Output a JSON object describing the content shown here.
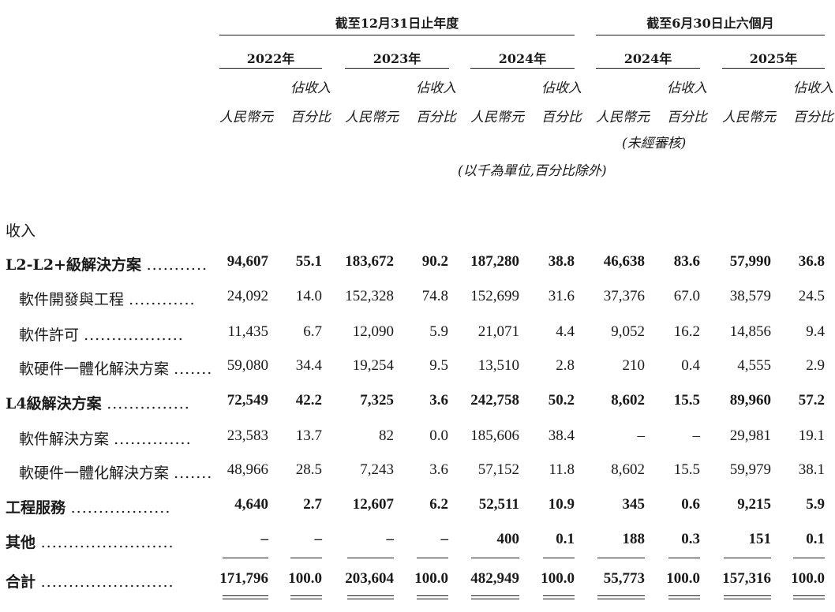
{
  "header": {
    "period_year": "截至12月31日止年度",
    "period_half": "截至6月30日止六個月",
    "years": [
      "2022年",
      "2023年",
      "2024年",
      "2024年",
      "2025年"
    ],
    "col_rmb": "人民幣元",
    "col_pct_line1": "佔收入",
    "col_pct_line2": "百分比",
    "unaudited": "(未經審核)",
    "unit_note": "(以千為單位,百分比除外)"
  },
  "section_title": "收入",
  "rows": [
    {
      "label": "L2-L2+級解決方案",
      "dots": "...........",
      "bold": true,
      "indent": false,
      "values": [
        "94,607",
        "55.1",
        "183,672",
        "90.2",
        "187,280",
        "38.8",
        "46,638",
        "83.6",
        "57,990",
        "36.8"
      ]
    },
    {
      "label": "軟件開發與工程",
      "dots": "............",
      "bold": false,
      "indent": true,
      "values": [
        "24,092",
        "14.0",
        "152,328",
        "74.8",
        "152,699",
        "31.6",
        "37,376",
        "67.0",
        "38,579",
        "24.5"
      ]
    },
    {
      "label": "軟件許可",
      "dots": "..................",
      "bold": false,
      "indent": true,
      "values": [
        "11,435",
        "6.7",
        "12,090",
        "5.9",
        "21,071",
        "4.4",
        "9,052",
        "16.2",
        "14,856",
        "9.4"
      ]
    },
    {
      "label": "軟硬件一體化解決方案",
      "dots": ".......",
      "bold": false,
      "indent": true,
      "values": [
        "59,080",
        "34.4",
        "19,254",
        "9.5",
        "13,510",
        "2.8",
        "210",
        "0.4",
        "4,555",
        "2.9"
      ]
    },
    {
      "label": "L4級解決方案",
      "dots": "...............",
      "bold": true,
      "indent": false,
      "values": [
        "72,549",
        "42.2",
        "7,325",
        "3.6",
        "242,758",
        "50.2",
        "8,602",
        "15.5",
        "89,960",
        "57.2"
      ]
    },
    {
      "label": "軟件解決方案",
      "dots": "..............",
      "bold": false,
      "indent": true,
      "values": [
        "23,583",
        "13.7",
        "82",
        "0.0",
        "185,606",
        "38.4",
        "–",
        "–",
        "29,981",
        "19.1"
      ]
    },
    {
      "label": "軟硬件一體化解決方案",
      "dots": ".......",
      "bold": false,
      "indent": true,
      "values": [
        "48,966",
        "28.5",
        "7,243",
        "3.6",
        "57,152",
        "11.8",
        "8,602",
        "15.5",
        "59,979",
        "38.1"
      ]
    },
    {
      "label": "工程服務",
      "dots": "..................",
      "bold": true,
      "indent": false,
      "values": [
        "4,640",
        "2.7",
        "12,607",
        "6.2",
        "52,511",
        "10.9",
        "345",
        "0.6",
        "9,215",
        "5.9"
      ]
    },
    {
      "label": "其他",
      "dots": "........................",
      "bold": true,
      "indent": false,
      "values": [
        "–",
        "–",
        "–",
        "–",
        "400",
        "0.1",
        "188",
        "0.3",
        "151",
        "0.1"
      ]
    },
    {
      "label": "合計",
      "dots": "........................",
      "bold": true,
      "indent": false,
      "values": [
        "171,796",
        "100.0",
        "203,604",
        "100.0",
        "482,949",
        "100.0",
        "55,773",
        "100.0",
        "157,316",
        "100.0"
      ]
    }
  ]
}
